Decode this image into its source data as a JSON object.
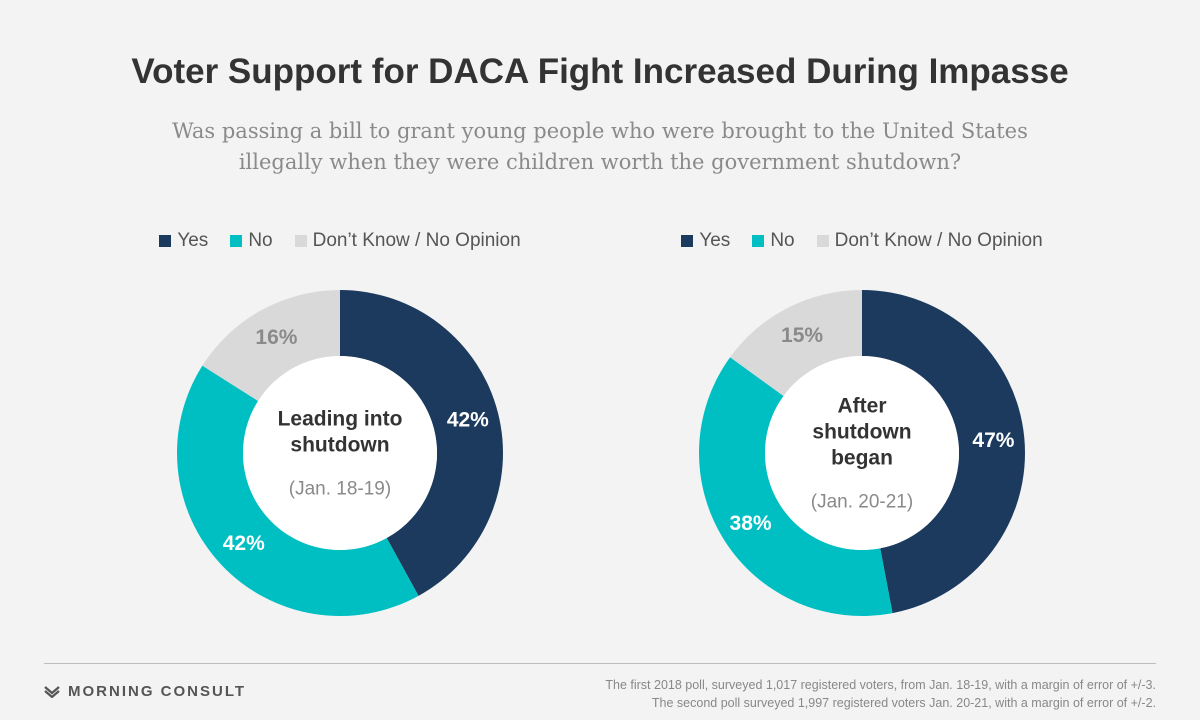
{
  "title": "Voter Support for DACA Fight Increased During Impasse",
  "subtitle": "Was passing a bill to grant young people who were brought to the United States illegally when they were children worth the government shutdown?",
  "colors": {
    "yes": "#1b3a5e",
    "no": "#00bfc3",
    "dont_know": "#d9d9d9",
    "label_light": "#ffffff",
    "label_dark": "#8a8a8a"
  },
  "chart_data": [
    {
      "type": "pie",
      "legend": [
        "Yes",
        "No",
        "Don’t Know / No Opinion"
      ],
      "center_title": [
        "Leading into",
        "shutdown"
      ],
      "center_subtitle": "(Jan. 18-19)",
      "slices": [
        {
          "label": "Yes",
          "value": 42,
          "display": "42%"
        },
        {
          "label": "No",
          "value": 42,
          "display": "42%"
        },
        {
          "label": "Don’t Know / No Opinion",
          "value": 16,
          "display": "16%"
        }
      ]
    },
    {
      "type": "pie",
      "legend": [
        "Yes",
        "No",
        "Don’t Know / No Opinion"
      ],
      "center_title": [
        "After",
        "shutdown",
        "began"
      ],
      "center_subtitle": "(Jan. 20-21)",
      "slices": [
        {
          "label": "Yes",
          "value": 47,
          "display": "47%"
        },
        {
          "label": "No",
          "value": 38,
          "display": "38%"
        },
        {
          "label": "Don’t Know / No Opinion",
          "value": 15,
          "display": "15%"
        }
      ]
    }
  ],
  "footer": {
    "brand": "MORNING CONSULT",
    "note_line1": "The first 2018 poll, surveyed 1,017 registered voters, from Jan. 18-19, with a margin of error of +/-3.",
    "note_line2": "The second poll surveyed 1,997 registered voters Jan. 20-21, with a margin of error of +/-2."
  }
}
